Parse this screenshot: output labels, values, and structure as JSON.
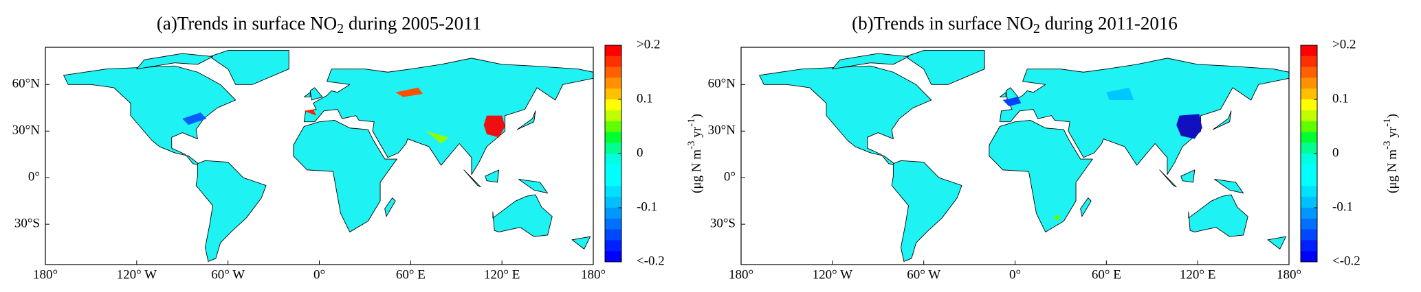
{
  "panels": [
    {
      "title": {
        "pre": "(a)Trends in surface NO",
        "sub": "2",
        "post": " during 2005-2011"
      }
    },
    {
      "title": {
        "pre": "(b)Trends in surface NO",
        "sub": "2",
        "post": " during 2011-2016"
      }
    }
  ],
  "map": {
    "lonlim": [
      -180,
      180
    ],
    "latlim": [
      -56,
      84
    ],
    "xticks": [
      {
        "value": -180,
        "label": "180°"
      },
      {
        "value": -120,
        "label": "120° W"
      },
      {
        "value": -60,
        "label": "60° W"
      },
      {
        "value": 0,
        "label": "0°"
      },
      {
        "value": 60,
        "label": "60° E"
      },
      {
        "value": 120,
        "label": "120° E"
      },
      {
        "value": 180,
        "label": "180°"
      }
    ],
    "yticks": [
      {
        "value": 60,
        "label": "60°N"
      },
      {
        "value": 30,
        "label": "30°N"
      },
      {
        "value": 0,
        "label": "0°"
      },
      {
        "value": -30,
        "label": "30°S"
      }
    ]
  },
  "colorbar": {
    "lim": [
      -0.2,
      0.2
    ],
    "ticks": [
      {
        "value": 0.2,
        "label": ">0.2"
      },
      0.1,
      0,
      -0.1,
      {
        "value": -0.2,
        "label": "<-0.2"
      }
    ],
    "colors": [
      "#ff0000",
      "#ff3000",
      "#ff6000",
      "#ff9000",
      "#ffc000",
      "#ffff00",
      "#c0ff00",
      "#60ff00",
      "#00ff30",
      "#00ff90",
      "#00ffe0",
      "#00ffff",
      "#00ffff",
      "#00e0ff",
      "#00c0ff",
      "#0098ff",
      "#0070ff",
      "#0048ff",
      "#0020ff",
      "#0000ff"
    ],
    "label": {
      "pre": "(μg N m",
      "sup1": "-3",
      "mid": " yr",
      "sup2": "-1",
      "post": ")"
    }
  }
}
